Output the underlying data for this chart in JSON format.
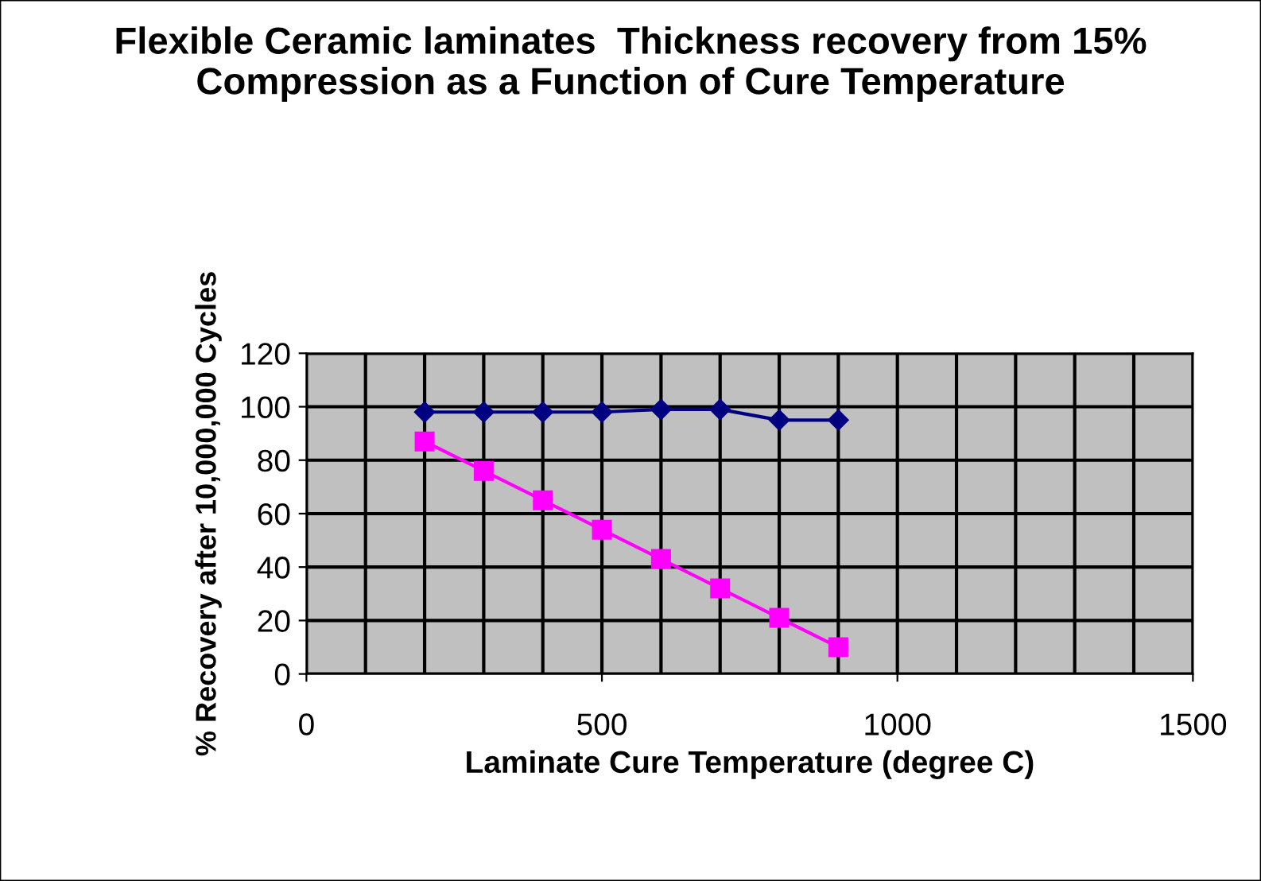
{
  "chart_data": {
    "type": "line",
    "title": "Flexible Ceramic laminates  Thickness recovery from 15% Compression as a Function of Cure Temperature",
    "xlabel": "Laminate Cure Temperature (degree C)",
    "ylabel": "% Recovery after 10,000,000 Cycles",
    "x": [
      200,
      300,
      400,
      500,
      600,
      700,
      800,
      900
    ],
    "series": [
      {
        "color": "#000080",
        "marker": "diamond",
        "values": [
          98,
          98,
          98,
          98,
          99,
          99,
          95,
          95
        ]
      },
      {
        "color": "#ff00ff",
        "marker": "square",
        "values": [
          87,
          76,
          65,
          54,
          43,
          32,
          21,
          10
        ]
      }
    ],
    "xlim": [
      0,
      1500
    ],
    "xticks": [
      0,
      {
        "value": 100,
        "label": null
      },
      {
        "value": 200,
        "label": null
      },
      {
        "value": 300,
        "label": null
      },
      {
        "value": 400,
        "label": null
      },
      500,
      {
        "value": 600,
        "label": null
      },
      {
        "value": 700,
        "label": null
      },
      {
        "value": 800,
        "label": null
      },
      {
        "value": 900,
        "label": null
      },
      1000,
      {
        "value": 1100,
        "label": null
      },
      {
        "value": 1200,
        "label": null
      },
      {
        "value": 1300,
        "label": null
      },
      {
        "value": 1400,
        "label": null
      },
      1500
    ],
    "ylim": [
      0,
      120
    ],
    "yticks": [
      0,
      20,
      40,
      60,
      80,
      100,
      120
    ],
    "grid": true,
    "legend": false
  }
}
